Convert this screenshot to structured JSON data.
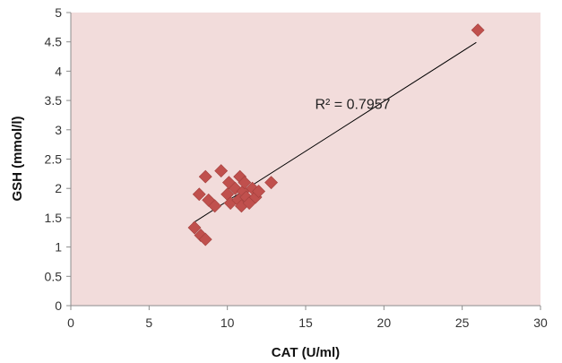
{
  "chart_data": {
    "type": "scatter",
    "xlabel": "CAT (U/ml)",
    "ylabel": "GSH (mmol/l)",
    "xlim": [
      0,
      30
    ],
    "ylim": [
      0,
      5
    ],
    "xticks": [
      "0",
      "5",
      "10",
      "15",
      "20",
      "25",
      "30"
    ],
    "yticks": [
      "0",
      "0.5",
      "1",
      "1.5",
      "2",
      "2.5",
      "3",
      "3.5",
      "4",
      "4.5",
      "5"
    ],
    "grid": false,
    "legend": "none",
    "plot_background": "#f2dcdb",
    "marker_color": "#c0504d",
    "marker": "diamond",
    "series": [
      {
        "points": [
          {
            "x": 26.0,
            "y": 4.7
          },
          {
            "x": 7.9,
            "y": 1.33
          },
          {
            "x": 8.3,
            "y": 1.2
          },
          {
            "x": 8.6,
            "y": 1.13
          },
          {
            "x": 8.2,
            "y": 1.9
          },
          {
            "x": 8.6,
            "y": 2.2
          },
          {
            "x": 8.8,
            "y": 1.8
          },
          {
            "x": 9.2,
            "y": 1.7
          },
          {
            "x": 9.6,
            "y": 2.3
          },
          {
            "x": 10.0,
            "y": 1.9
          },
          {
            "x": 10.1,
            "y": 2.1
          },
          {
            "x": 10.2,
            "y": 1.75
          },
          {
            "x": 10.5,
            "y": 2.0
          },
          {
            "x": 10.7,
            "y": 1.8
          },
          {
            "x": 10.8,
            "y": 2.2
          },
          {
            "x": 10.9,
            "y": 1.7
          },
          {
            "x": 11.0,
            "y": 1.95
          },
          {
            "x": 11.1,
            "y": 2.1
          },
          {
            "x": 11.2,
            "y": 1.85
          },
          {
            "x": 11.4,
            "y": 1.75
          },
          {
            "x": 11.6,
            "y": 2.0
          },
          {
            "x": 11.8,
            "y": 1.85
          },
          {
            "x": 12.0,
            "y": 1.95
          },
          {
            "x": 12.8,
            "y": 2.1
          }
        ]
      }
    ],
    "trendline": {
      "x": [
        7.8,
        25.9
      ],
      "y": [
        1.41,
        4.49
      ],
      "color": "#000000"
    },
    "annotations": [
      {
        "text": "R² = 0.7957",
        "x": 15.6,
        "y": 3.45
      }
    ]
  }
}
